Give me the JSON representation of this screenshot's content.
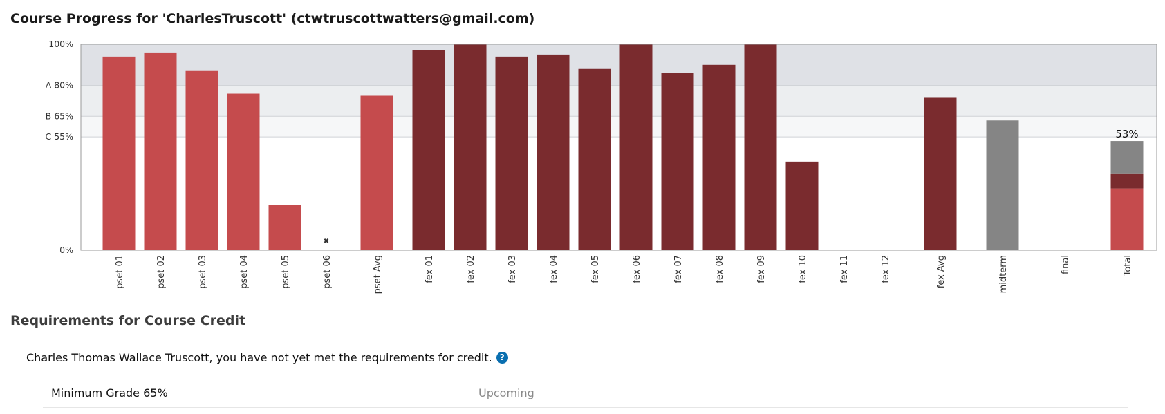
{
  "page": {
    "title": "Course Progress for 'CharlesTruscott' (ctwtruscottwatters@gmail.com)"
  },
  "chart_data": {
    "type": "bar",
    "ylim": [
      0,
      100
    ],
    "y_ticks": [
      {
        "value": 100,
        "label": "100%"
      },
      {
        "value": 80,
        "label": "A 80%"
      },
      {
        "value": 65,
        "label": "B 65%"
      },
      {
        "value": 55,
        "label": "C 55%"
      },
      {
        "value": 0,
        "label": "0%"
      }
    ],
    "grade_bands": [
      {
        "from": 80,
        "to": 100,
        "color": "#dfe1e6"
      },
      {
        "from": 65,
        "to": 80,
        "color": "#eceef0"
      },
      {
        "from": 55,
        "to": 65,
        "color": "#f6f7f8"
      }
    ],
    "categories": [
      "pset 01",
      "pset 02",
      "pset 03",
      "pset 04",
      "pset 05",
      "pset 06",
      "pset Avg",
      "fex 01",
      "fex 02",
      "fex 03",
      "fex 04",
      "fex 05",
      "fex 06",
      "fex 07",
      "fex 08",
      "fex 09",
      "fex 10",
      "fex 11",
      "fex 12",
      "fex Avg",
      "midterm",
      "final",
      "Total"
    ],
    "bars": [
      {
        "label": "pset 01",
        "value": 94,
        "group": "pset"
      },
      {
        "label": "pset 02",
        "value": 96,
        "group": "pset"
      },
      {
        "label": "pset 03",
        "value": 87,
        "group": "pset"
      },
      {
        "label": "pset 04",
        "value": 76,
        "group": "pset"
      },
      {
        "label": "pset 05",
        "value": 22,
        "group": "pset"
      },
      {
        "label": "pset 06",
        "value": null,
        "group": "pset",
        "dropped": true
      },
      {
        "label": "pset Avg",
        "value": 75,
        "group": "pset"
      },
      {
        "label": "fex 01",
        "value": 97,
        "group": "fex"
      },
      {
        "label": "fex 02",
        "value": 100,
        "group": "fex"
      },
      {
        "label": "fex 03",
        "value": 94,
        "group": "fex"
      },
      {
        "label": "fex 04",
        "value": 95,
        "group": "fex"
      },
      {
        "label": "fex 05",
        "value": 88,
        "group": "fex"
      },
      {
        "label": "fex 06",
        "value": 100,
        "group": "fex"
      },
      {
        "label": "fex 07",
        "value": 86,
        "group": "fex"
      },
      {
        "label": "fex 08",
        "value": 90,
        "group": "fex"
      },
      {
        "label": "fex 09",
        "value": 100,
        "group": "fex"
      },
      {
        "label": "fex 10",
        "value": 43,
        "group": "fex"
      },
      {
        "label": "fex 11",
        "value": null,
        "group": "fex"
      },
      {
        "label": "fex 12",
        "value": null,
        "group": "fex"
      },
      {
        "label": "fex Avg",
        "value": 74,
        "group": "fex"
      },
      {
        "label": "midterm",
        "value": 63,
        "group": "midterm"
      },
      {
        "label": "final",
        "value": null,
        "group": "final"
      }
    ],
    "total": {
      "label": "Total",
      "value_label": "53%",
      "segments": [
        {
          "group": "pset",
          "value": 30
        },
        {
          "group": "fex",
          "value": 7
        },
        {
          "group": "midterm",
          "value": 16
        }
      ]
    },
    "group_colors": {
      "pset": "#c54b4d",
      "fex": "#7a2b2e",
      "midterm": "#858585",
      "final": "#858585"
    },
    "dropped_marker": "✖"
  },
  "requirements": {
    "title": "Requirements for Course Credit",
    "status_text": "Charles Thomas Wallace Truscott, you have not yet met the requirements for credit.",
    "help_icon_glyph": "?",
    "rows": [
      {
        "name": "Minimum Grade 65%",
        "status": "Upcoming"
      }
    ]
  }
}
